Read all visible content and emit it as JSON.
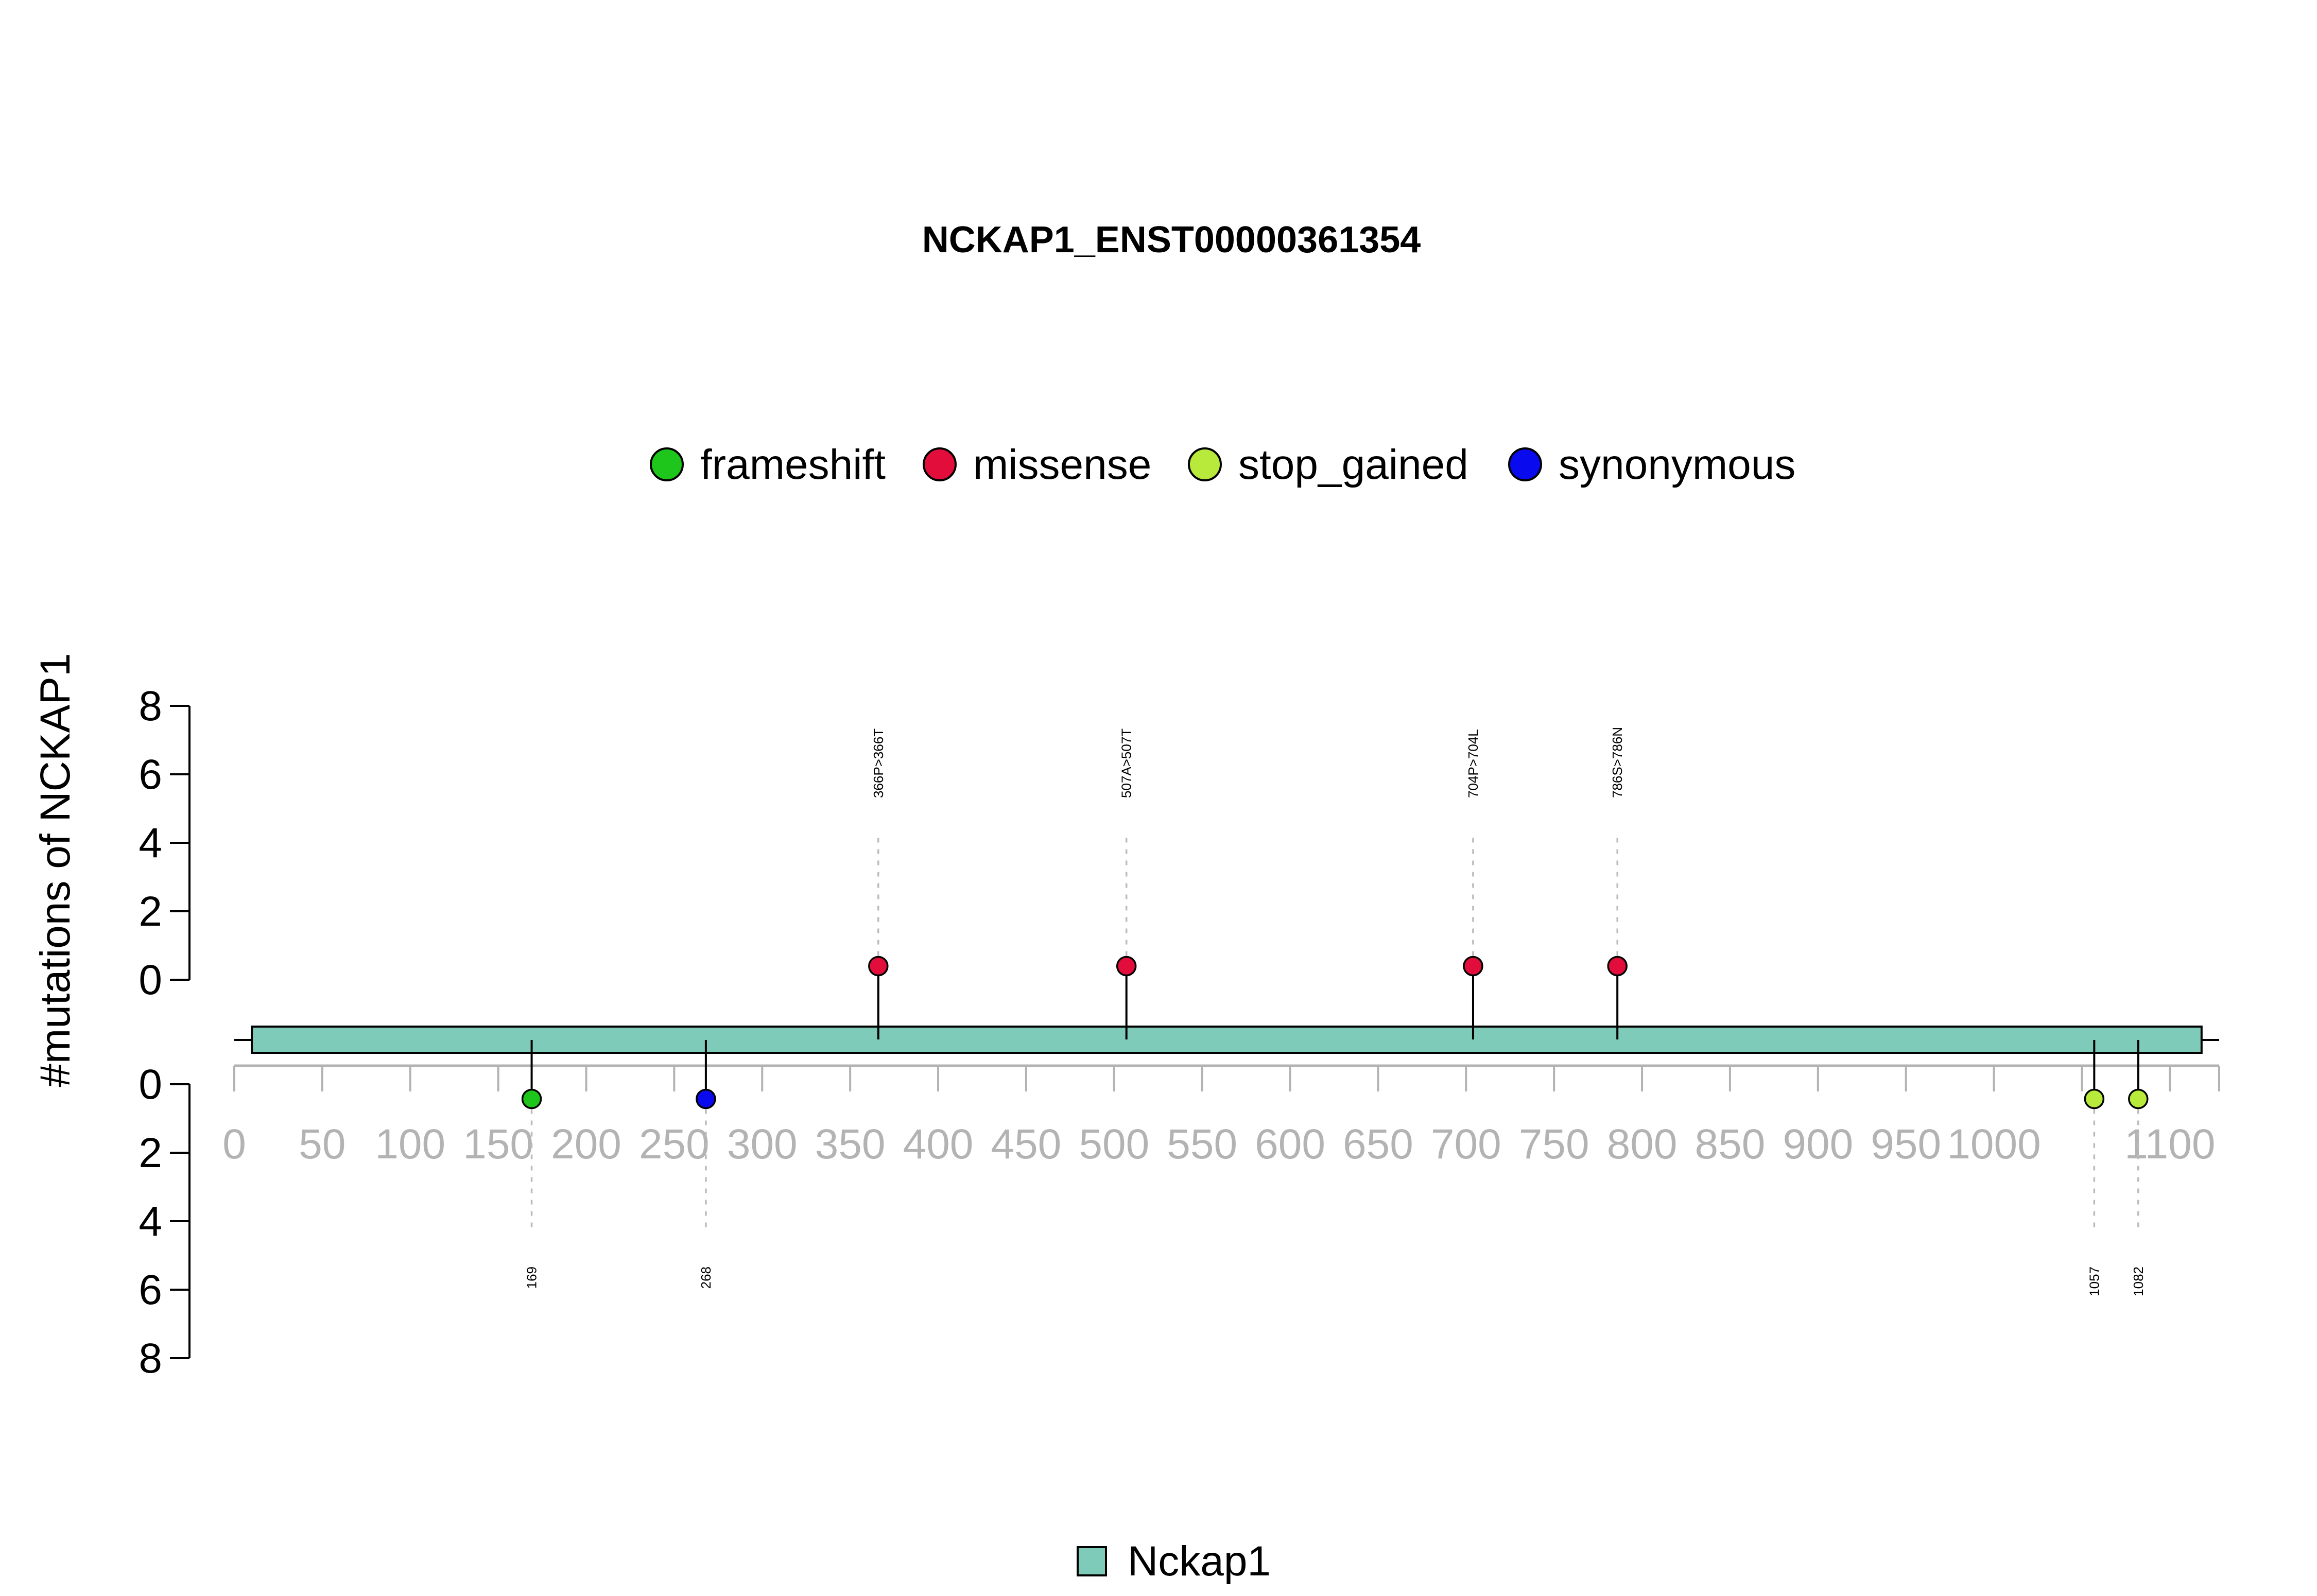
{
  "chart_data": {
    "type": "lollipop",
    "title": "NCKAP1_ENST00000361354",
    "ylabel": "#mutations of NCKAP1",
    "protein_length": 1128,
    "x_ticks": [
      "0",
      "50",
      "100",
      "150",
      "200",
      "250",
      "300",
      "350",
      "400",
      "450",
      "500",
      "550",
      "600",
      "650",
      "700",
      "750",
      "800",
      "850",
      "900",
      "950",
      "1000",
      "1100"
    ],
    "x_tick_values": [
      0,
      50,
      100,
      150,
      200,
      250,
      300,
      350,
      400,
      450,
      500,
      550,
      600,
      650,
      700,
      750,
      800,
      850,
      900,
      950,
      1000,
      1100
    ],
    "y_ticks": [
      "0",
      "2",
      "4",
      "6",
      "8"
    ],
    "ylim": [
      0,
      8
    ],
    "legend": [
      {
        "name": "frameshift",
        "color": "#1ec51a"
      },
      {
        "name": "missense",
        "color": "#e30d3c"
      },
      {
        "name": "stop_gained",
        "color": "#b8ea3b"
      },
      {
        "name": "synonymous",
        "color": "#0a0aee"
      }
    ],
    "domains": [
      {
        "name": "Nckap1",
        "start": 10,
        "end": 1118,
        "color": "#7ecbb9"
      }
    ],
    "mutations_top": [
      {
        "pos": 366,
        "count": 1,
        "type": "missense",
        "label": "366P>366T"
      },
      {
        "pos": 507,
        "count": 1,
        "type": "missense",
        "label": "507A>507T"
      },
      {
        "pos": 704,
        "count": 1,
        "type": "missense",
        "label": "704P>704L"
      },
      {
        "pos": 786,
        "count": 1,
        "type": "missense",
        "label": "786S>786N"
      }
    ],
    "mutations_bottom": [
      {
        "pos": 169,
        "count": 1,
        "type": "frameshift",
        "label": "169"
      },
      {
        "pos": 268,
        "count": 1,
        "type": "synonymous",
        "label": "268"
      },
      {
        "pos": 1057,
        "count": 1,
        "type": "stop_gained",
        "label": "1057"
      },
      {
        "pos": 1082,
        "count": 1,
        "type": "stop_gained",
        "label": "1082"
      }
    ]
  }
}
